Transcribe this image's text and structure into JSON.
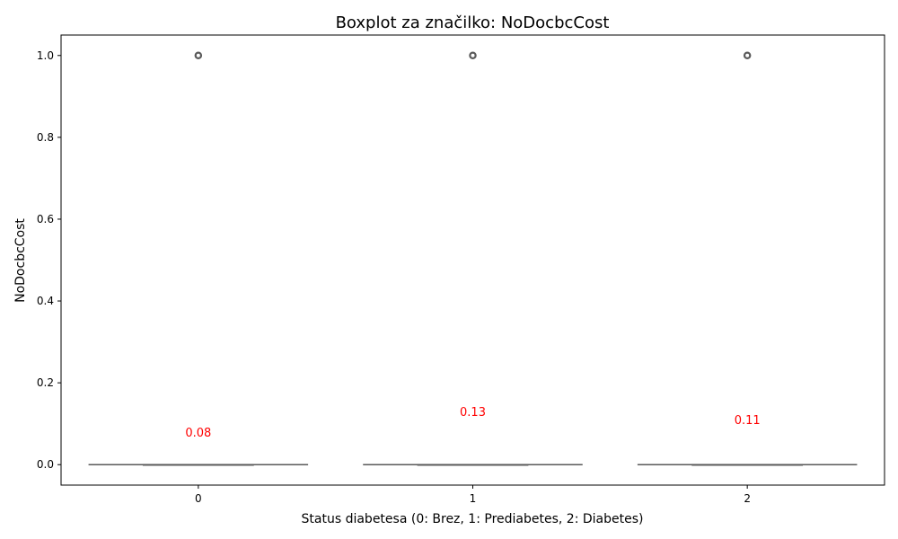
{
  "chart_data": {
    "type": "box",
    "title": "Boxplot za značilko: NoDocbcCost",
    "xlabel": "Status diabetesa (0: Brez, 1: Prediabetes, 2: Diabetes)",
    "ylabel": "NoDocbcCost",
    "categories": [
      "0",
      "1",
      "2"
    ],
    "ylim": [
      -0.05,
      1.05
    ],
    "yticks": [
      0.0,
      0.2,
      0.4,
      0.6,
      0.8,
      1.0
    ],
    "ytick_labels": [
      "0.0",
      "0.2",
      "0.4",
      "0.6",
      "0.8",
      "1.0"
    ],
    "boxes": [
      {
        "category": "0",
        "min": 0.0,
        "q1": 0.0,
        "median": 0.0,
        "q3": 0.0,
        "max": 0.0,
        "outliers": [
          1.0
        ],
        "mean": 0.08,
        "mean_label": "0.08"
      },
      {
        "category": "1",
        "min": 0.0,
        "q1": 0.0,
        "median": 0.0,
        "q3": 0.0,
        "max": 0.0,
        "outliers": [
          1.0
        ],
        "mean": 0.13,
        "mean_label": "0.13"
      },
      {
        "category": "2",
        "min": 0.0,
        "q1": 0.0,
        "median": 0.0,
        "q3": 0.0,
        "max": 0.0,
        "outliers": [
          1.0
        ],
        "mean": 0.11,
        "mean_label": "0.11"
      }
    ],
    "colors": {
      "box_line": "#595959",
      "outlier": "#595959",
      "mean_label": "#ff0000",
      "axis": "#000000"
    },
    "grid": false
  }
}
